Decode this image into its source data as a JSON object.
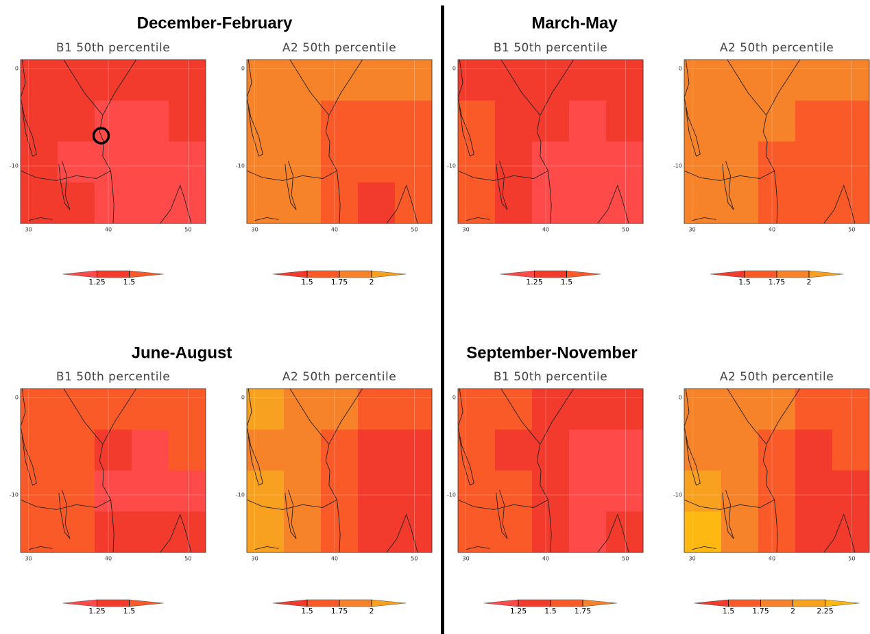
{
  "axes": {
    "xlim": [
      29,
      52.2
    ],
    "ylim": [
      -15.9,
      0.9
    ],
    "xticks": [
      30,
      40,
      50
    ],
    "yticks": [
      0,
      -10
    ]
  },
  "seasons": [
    {
      "title": "December-February",
      "panels": [
        {
          "title": "B1 50th percentile",
          "colorbar": {
            "levels": [
              1.25,
              1.5
            ],
            "colors": [
              "#ff4a4a",
              "#f23a2d",
              "#fa5a28"
            ]
          },
          "values": [
            [
              1.4,
              1.4,
              1.4,
              1.4,
              1.4
            ],
            [
              1.4,
              1.4,
              1.2,
              1.2,
              1.4
            ],
            [
              1.4,
              1.2,
              1.2,
              1.2,
              1.2
            ],
            [
              1.4,
              1.4,
              1.2,
              1.2,
              1.2
            ]
          ]
        },
        {
          "title": "A2 50th percentile",
          "colorbar": {
            "levels": [
              1.5,
              1.75,
              2
            ],
            "colors": [
              "#f23a2d",
              "#fa5a28",
              "#f6822a",
              "#f8a01f"
            ]
          },
          "values": [
            [
              1.8,
              1.8,
              1.8,
              1.8,
              1.8
            ],
            [
              1.8,
              1.8,
              1.7,
              1.7,
              1.7
            ],
            [
              1.8,
              1.8,
              1.7,
              1.7,
              1.7
            ],
            [
              1.8,
              1.8,
              1.7,
              1.45,
              1.7
            ]
          ]
        }
      ]
    },
    {
      "title": "March-May",
      "panels": [
        {
          "title": "B1 50th percentile",
          "colorbar": {
            "levels": [
              1.25,
              1.5
            ],
            "colors": [
              "#ff4a4a",
              "#f23a2d",
              "#fa5a28"
            ]
          },
          "values": [
            [
              1.4,
              1.4,
              1.4,
              1.4,
              1.4
            ],
            [
              1.55,
              1.4,
              1.4,
              1.2,
              1.4
            ],
            [
              1.55,
              1.4,
              1.2,
              1.2,
              1.2
            ],
            [
              1.55,
              1.4,
              1.2,
              1.2,
              1.2
            ]
          ]
        },
        {
          "title": "A2 50th percentile",
          "colorbar": {
            "levels": [
              1.5,
              1.75,
              2
            ],
            "colors": [
              "#f23a2d",
              "#fa5a28",
              "#f6822a",
              "#f8a01f"
            ]
          },
          "values": [
            [
              1.8,
              1.8,
              1.8,
              1.8,
              1.8
            ],
            [
              1.8,
              1.8,
              1.8,
              1.6,
              1.6
            ],
            [
              1.8,
              1.8,
              1.6,
              1.6,
              1.6
            ],
            [
              1.8,
              1.8,
              1.6,
              1.6,
              1.6
            ]
          ]
        }
      ]
    },
    {
      "title": "June-August",
      "panels": [
        {
          "title": "B1 50th percentile",
          "colorbar": {
            "levels": [
              1.25,
              1.5
            ],
            "colors": [
              "#ff4a4a",
              "#f23a2d",
              "#fa5a28"
            ]
          },
          "values": [
            [
              1.6,
              1.6,
              1.6,
              1.6,
              1.6
            ],
            [
              1.6,
              1.6,
              1.4,
              1.2,
              1.6
            ],
            [
              1.6,
              1.6,
              1.2,
              1.2,
              1.2
            ],
            [
              1.6,
              1.6,
              1.4,
              1.4,
              1.4
            ]
          ]
        },
        {
          "title": "A2 50th percentile",
          "colorbar": {
            "levels": [
              1.5,
              1.75,
              2
            ],
            "colors": [
              "#f23a2d",
              "#fa5a28",
              "#f6822a",
              "#f8a01f"
            ]
          },
          "values": [
            [
              2.1,
              1.8,
              1.8,
              1.6,
              1.6
            ],
            [
              1.8,
              1.8,
              1.6,
              1.45,
              1.45
            ],
            [
              2.1,
              1.8,
              1.6,
              1.45,
              1.45
            ],
            [
              2.1,
              1.8,
              1.6,
              1.45,
              1.45
            ]
          ]
        }
      ]
    },
    {
      "title": "September-November",
      "panels": [
        {
          "title": "B1 50th percentile",
          "colorbar": {
            "levels": [
              1.25,
              1.5,
              1.75
            ],
            "colors": [
              "#ff4a4a",
              "#f23a2d",
              "#fa5a28",
              "#f6822a"
            ]
          },
          "values": [
            [
              1.6,
              1.6,
              1.4,
              1.4,
              1.4
            ],
            [
              1.6,
              1.4,
              1.4,
              1.2,
              1.2
            ],
            [
              1.6,
              1.6,
              1.4,
              1.2,
              1.2
            ],
            [
              1.6,
              1.6,
              1.4,
              1.2,
              1.4
            ]
          ]
        },
        {
          "title": "A2 50th percentile",
          "colorbar": {
            "levels": [
              1.5,
              1.75,
              2,
              2.25
            ],
            "colors": [
              "#f23a2d",
              "#fa5a28",
              "#f6822a",
              "#f8a01f",
              "#fdb812"
            ]
          },
          "values": [
            [
              1.9,
              1.9,
              1.9,
              1.6,
              1.6
            ],
            [
              1.9,
              1.9,
              1.6,
              1.45,
              1.6
            ],
            [
              2.1,
              1.9,
              1.6,
              1.45,
              1.45
            ],
            [
              2.3,
              1.9,
              1.6,
              1.45,
              1.45
            ]
          ]
        }
      ]
    }
  ]
}
